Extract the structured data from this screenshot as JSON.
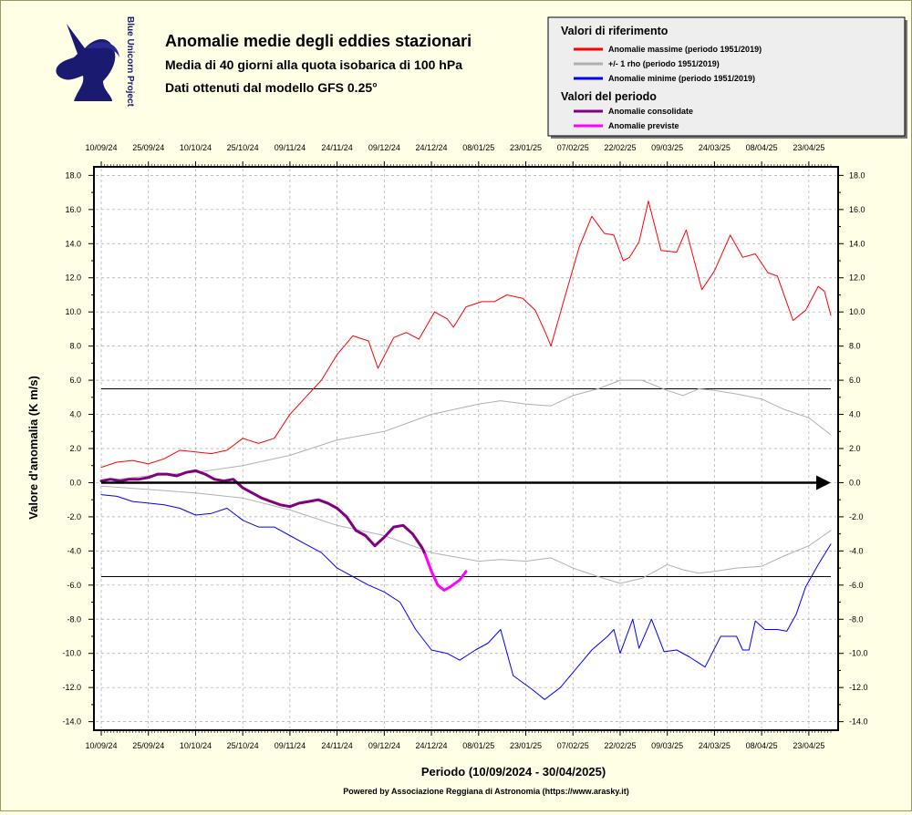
{
  "header": {
    "logo_text": "Blue Unicorn Project",
    "title": "Anomalie medie degli eddies stazionari",
    "subtitle_1": "Media di 40 giorni alla quota isobarica di 100 hPa",
    "subtitle_2": "Dati ottenuti dal modello GFS 0.25°"
  },
  "legend": {
    "section_ref": "Valori di riferimento",
    "section_period": "Valori del periodo",
    "placement": "top-right",
    "items": [
      {
        "label": "Anomalie massime (periodo 1951/2019)",
        "color": "#ff0000"
      },
      {
        "label": "+/- 1 rho (periodo 1951/2019)",
        "color": "#b0b0b0"
      },
      {
        "label": "Anomalie minime (periodo 1951/2019)",
        "color": "#0000ff"
      },
      {
        "label": "Anomalie consolidate",
        "color": "#800080"
      },
      {
        "label": "Anomalie previste",
        "color": "#ff00ff"
      }
    ]
  },
  "footer": {
    "xlabel": "Periodo (10/09/2024 - 30/04/2025)",
    "credit": "Powered by Associazione Reggiana di Astronomia (https://www.arasky.it)"
  },
  "chart_data": {
    "type": "line",
    "ylabel": "Valore d'anomalia (K m/s)",
    "xlabel": "Periodo (10/09/2024 - 30/04/2025)",
    "x_start": "10/09/24",
    "x_end": "30/04/25",
    "ylim": [
      -14.5,
      18.5
    ],
    "grid": true,
    "x_tick_labels": [
      "10/09/24",
      "25/09/24",
      "10/10/24",
      "25/10/24",
      "09/11/24",
      "24/11/24",
      "09/12/24",
      "24/12/24",
      "08/01/25",
      "23/01/25",
      "07/02/25",
      "22/02/25",
      "09/03/25",
      "24/03/25",
      "08/04/25",
      "23/04/25"
    ],
    "y_ticks": [
      18,
      16,
      14,
      12,
      10,
      8,
      6,
      4,
      2,
      0,
      -2,
      -4,
      -6,
      -8,
      -10,
      -12,
      -14
    ],
    "y_tick_labels": [
      "18.0",
      "16.0",
      "14.0",
      "12.0",
      "10.0",
      "8.0",
      "6.0",
      "4.0",
      "2.0",
      "0.0",
      "-2.0",
      "-4.0",
      "-6.0",
      "-8.0",
      "-10.0",
      "-12.0",
      "-14.0"
    ],
    "rho_band": [
      -5.5,
      5.5
    ],
    "series": [
      {
        "name": "Anomalie massime (periodo 1951/2019)",
        "color": "#ff0000",
        "width": 1,
        "points": [
          [
            "10/09/24",
            0.9
          ],
          [
            "15/09/24",
            1.2
          ],
          [
            "20/09/24",
            1.3
          ],
          [
            "25/09/24",
            1.1
          ],
          [
            "30/09/24",
            1.4
          ],
          [
            "05/10/24",
            1.9
          ],
          [
            "10/10/24",
            1.8
          ],
          [
            "15/10/24",
            1.7
          ],
          [
            "20/10/24",
            1.9
          ],
          [
            "25/10/24",
            2.6
          ],
          [
            "30/10/24",
            2.3
          ],
          [
            "04/11/24",
            2.6
          ],
          [
            "09/11/24",
            4.0
          ],
          [
            "14/11/24",
            5.0
          ],
          [
            "19/11/24",
            6.0
          ],
          [
            "24/11/24",
            7.5
          ],
          [
            "29/11/24",
            8.6
          ],
          [
            "04/12/24",
            8.3
          ],
          [
            "07/12/24",
            6.7
          ],
          [
            "12/12/24",
            8.5
          ],
          [
            "16/12/24",
            8.8
          ],
          [
            "20/12/24",
            8.4
          ],
          [
            "25/12/24",
            10.0
          ],
          [
            "29/12/24",
            9.6
          ],
          [
            "31/12/24",
            9.1
          ],
          [
            "04/01/25",
            10.3
          ],
          [
            "09/01/25",
            10.6
          ],
          [
            "13/01/25",
            10.6
          ],
          [
            "17/01/25",
            11.0
          ],
          [
            "22/01/25",
            10.8
          ],
          [
            "26/01/25",
            10.1
          ],
          [
            "29/01/25",
            8.9
          ],
          [
            "31/01/25",
            8.0
          ],
          [
            "04/02/25",
            10.6
          ],
          [
            "09/02/25",
            13.8
          ],
          [
            "13/02/25",
            15.6
          ],
          [
            "17/02/25",
            14.6
          ],
          [
            "20/02/25",
            14.5
          ],
          [
            "23/02/25",
            13.0
          ],
          [
            "25/02/25",
            13.2
          ],
          [
            "28/02/25",
            14.1
          ],
          [
            "03/03/25",
            16.5
          ],
          [
            "07/03/25",
            13.6
          ],
          [
            "12/03/25",
            13.5
          ],
          [
            "15/03/25",
            14.8
          ],
          [
            "20/03/25",
            11.3
          ],
          [
            "24/03/25",
            12.4
          ],
          [
            "29/03/25",
            14.5
          ],
          [
            "02/04/25",
            13.2
          ],
          [
            "06/04/25",
            13.4
          ],
          [
            "10/04/25",
            12.3
          ],
          [
            "13/04/25",
            12.1
          ],
          [
            "18/04/25",
            9.5
          ],
          [
            "22/04/25",
            10.1
          ],
          [
            "26/04/25",
            11.5
          ],
          [
            "28/04/25",
            11.2
          ],
          [
            "30/04/25",
            9.8
          ]
        ]
      },
      {
        "name": "+/- 1 rho (periodo 1951/2019) upper",
        "color": "#b0b0b0",
        "width": 1,
        "points": [
          [
            "10/09/24",
            0.1
          ],
          [
            "25/09/24",
            0.4
          ],
          [
            "10/10/24",
            0.6
          ],
          [
            "25/10/24",
            1.0
          ],
          [
            "09/11/24",
            1.6
          ],
          [
            "24/11/24",
            2.5
          ],
          [
            "09/12/24",
            3.0
          ],
          [
            "24/12/24",
            4.0
          ],
          [
            "08/01/25",
            4.6
          ],
          [
            "15/01/25",
            4.8
          ],
          [
            "23/01/25",
            4.6
          ],
          [
            "31/01/25",
            4.5
          ],
          [
            "07/02/25",
            5.1
          ],
          [
            "15/02/25",
            5.5
          ],
          [
            "22/02/25",
            6.0
          ],
          [
            "01/03/25",
            6.0
          ],
          [
            "09/03/25",
            5.4
          ],
          [
            "14/03/25",
            5.1
          ],
          [
            "19/03/25",
            5.5
          ],
          [
            "24/03/25",
            5.4
          ],
          [
            "31/03/25",
            5.2
          ],
          [
            "08/04/25",
            4.9
          ],
          [
            "15/04/25",
            4.3
          ],
          [
            "23/04/25",
            3.8
          ],
          [
            "30/04/25",
            2.8
          ]
        ]
      },
      {
        "name": "+/- 1 rho (periodo 1951/2019) lower",
        "color": "#b0b0b0",
        "width": 1,
        "points": [
          [
            "10/09/24",
            -0.2
          ],
          [
            "25/09/24",
            -0.4
          ],
          [
            "10/10/24",
            -0.6
          ],
          [
            "25/10/24",
            -0.9
          ],
          [
            "09/11/24",
            -1.6
          ],
          [
            "24/11/24",
            -2.5
          ],
          [
            "09/12/24",
            -3.1
          ],
          [
            "24/12/24",
            -4.1
          ],
          [
            "08/01/25",
            -4.6
          ],
          [
            "15/01/25",
            -4.5
          ],
          [
            "23/01/25",
            -4.6
          ],
          [
            "31/01/25",
            -4.4
          ],
          [
            "07/02/25",
            -5.0
          ],
          [
            "15/02/25",
            -5.5
          ],
          [
            "22/02/25",
            -5.9
          ],
          [
            "01/03/25",
            -5.6
          ],
          [
            "09/03/25",
            -4.8
          ],
          [
            "14/03/25",
            -5.1
          ],
          [
            "19/03/25",
            -5.3
          ],
          [
            "24/03/25",
            -5.2
          ],
          [
            "31/03/25",
            -5.0
          ],
          [
            "08/04/25",
            -4.9
          ],
          [
            "15/04/25",
            -4.3
          ],
          [
            "23/04/25",
            -3.7
          ],
          [
            "30/04/25",
            -2.8
          ]
        ]
      },
      {
        "name": "Anomalie minime (periodo 1951/2019)",
        "color": "#0000ff",
        "width": 1,
        "points": [
          [
            "10/09/24",
            -0.7
          ],
          [
            "15/09/24",
            -0.8
          ],
          [
            "20/09/24",
            -1.1
          ],
          [
            "25/09/24",
            -1.2
          ],
          [
            "30/09/24",
            -1.3
          ],
          [
            "05/10/24",
            -1.5
          ],
          [
            "10/10/24",
            -1.9
          ],
          [
            "15/10/24",
            -1.8
          ],
          [
            "20/10/24",
            -1.5
          ],
          [
            "25/10/24",
            -2.2
          ],
          [
            "30/10/24",
            -2.6
          ],
          [
            "04/11/24",
            -2.6
          ],
          [
            "09/11/24",
            -3.1
          ],
          [
            "14/11/24",
            -3.6
          ],
          [
            "19/11/24",
            -4.1
          ],
          [
            "24/11/24",
            -5.0
          ],
          [
            "29/11/24",
            -5.5
          ],
          [
            "04/12/24",
            -6.0
          ],
          [
            "09/12/24",
            -6.4
          ],
          [
            "14/12/24",
            -7.0
          ],
          [
            "19/12/24",
            -8.6
          ],
          [
            "24/12/24",
            -9.8
          ],
          [
            "29/12/24",
            -10.0
          ],
          [
            "02/01/25",
            -10.4
          ],
          [
            "07/01/25",
            -9.8
          ],
          [
            "11/01/25",
            -9.4
          ],
          [
            "15/01/25",
            -8.6
          ],
          [
            "19/01/25",
            -11.3
          ],
          [
            "25/01/25",
            -12.1
          ],
          [
            "29/01/25",
            -12.7
          ],
          [
            "03/02/25",
            -12.0
          ],
          [
            "08/02/25",
            -10.9
          ],
          [
            "13/02/25",
            -9.8
          ],
          [
            "18/02/25",
            -9.0
          ],
          [
            "20/02/25",
            -8.6
          ],
          [
            "22/02/25",
            -10.0
          ],
          [
            "26/02/25",
            -8.0
          ],
          [
            "28/02/25",
            -9.7
          ],
          [
            "04/03/25",
            -8.0
          ],
          [
            "08/03/25",
            -9.9
          ],
          [
            "12/03/25",
            -9.8
          ],
          [
            "16/03/25",
            -10.2
          ],
          [
            "21/03/25",
            -10.8
          ],
          [
            "26/03/25",
            -9.0
          ],
          [
            "31/03/25",
            -9.0
          ],
          [
            "02/04/25",
            -9.8
          ],
          [
            "04/04/25",
            -9.8
          ],
          [
            "06/04/25",
            -8.1
          ],
          [
            "09/04/25",
            -8.6
          ],
          [
            "13/04/25",
            -8.6
          ],
          [
            "16/04/25",
            -8.7
          ],
          [
            "19/04/25",
            -7.7
          ],
          [
            "22/04/25",
            -6.1
          ],
          [
            "26/04/25",
            -4.8
          ],
          [
            "30/04/25",
            -3.6
          ]
        ]
      },
      {
        "name": "Anomalie consolidate",
        "color": "#800080",
        "width": 3,
        "points": [
          [
            "10/09/24",
            0.1
          ],
          [
            "13/09/24",
            0.2
          ],
          [
            "16/09/24",
            0.1
          ],
          [
            "19/09/24",
            0.2
          ],
          [
            "22/09/24",
            0.2
          ],
          [
            "25/09/24",
            0.3
          ],
          [
            "28/09/24",
            0.5
          ],
          [
            "01/10/24",
            0.5
          ],
          [
            "04/10/24",
            0.4
          ],
          [
            "07/10/24",
            0.6
          ],
          [
            "10/10/24",
            0.7
          ],
          [
            "13/10/24",
            0.5
          ],
          [
            "16/10/24",
            0.2
          ],
          [
            "19/10/24",
            0.1
          ],
          [
            "22/10/24",
            0.2
          ],
          [
            "25/10/24",
            -0.3
          ],
          [
            "28/10/24",
            -0.6
          ],
          [
            "31/10/24",
            -0.9
          ],
          [
            "03/11/24",
            -1.1
          ],
          [
            "06/11/24",
            -1.3
          ],
          [
            "09/11/24",
            -1.4
          ],
          [
            "12/11/24",
            -1.2
          ],
          [
            "15/11/24",
            -1.1
          ],
          [
            "18/11/24",
            -1.0
          ],
          [
            "21/11/24",
            -1.2
          ],
          [
            "24/11/24",
            -1.5
          ],
          [
            "27/11/24",
            -2.0
          ],
          [
            "30/11/24",
            -2.8
          ],
          [
            "03/12/24",
            -3.1
          ],
          [
            "06/12/24",
            -3.7
          ],
          [
            "09/12/24",
            -3.2
          ],
          [
            "12/12/24",
            -2.6
          ],
          [
            "15/12/24",
            -2.5
          ],
          [
            "18/12/24",
            -3.0
          ],
          [
            "21/12/24",
            -3.8
          ],
          [
            "22/12/24",
            -4.2
          ]
        ]
      },
      {
        "name": "Anomalie previste",
        "color": "#ff00ff",
        "width": 3,
        "points": [
          [
            "22/12/24",
            -4.2
          ],
          [
            "24/12/24",
            -5.2
          ],
          [
            "26/12/24",
            -6.0
          ],
          [
            "28/12/24",
            -6.3
          ],
          [
            "30/12/24",
            -6.1
          ],
          [
            "02/01/25",
            -5.7
          ],
          [
            "04/01/25",
            -5.2
          ]
        ]
      }
    ]
  }
}
